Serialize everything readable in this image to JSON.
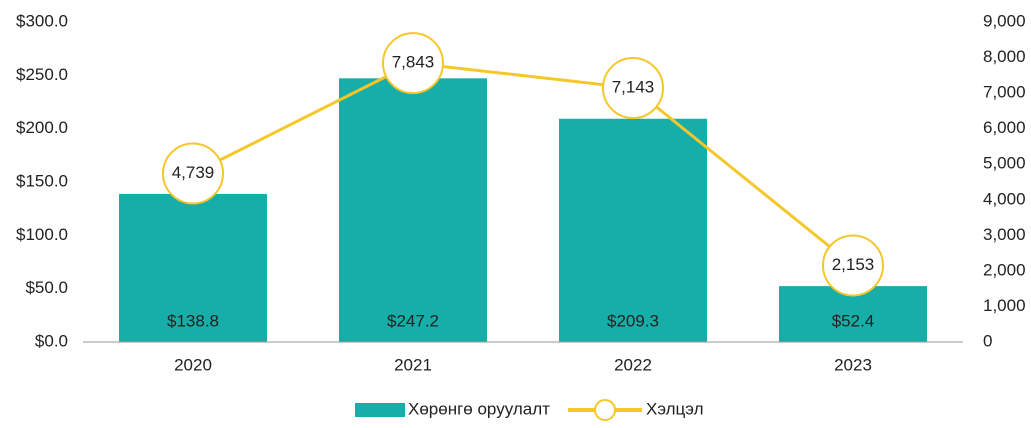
{
  "chart_data": {
    "type": "bar",
    "categories": [
      "2020",
      "2021",
      "2022",
      "2023"
    ],
    "series": [
      {
        "name": "Хөрөнгө оруулалт",
        "type": "bar",
        "color": "#17ada8",
        "values": [
          138.8,
          247.2,
          209.3,
          52.4
        ],
        "value_labels": [
          "$138.8",
          "$247.2",
          "$209.3",
          "$52.4"
        ]
      },
      {
        "name": "Хэлцэл",
        "type": "line",
        "axis": "y2",
        "color": "#f5c72a",
        "values": [
          4739,
          7843,
          7143,
          2153
        ],
        "value_labels": [
          "4,739",
          "7,843",
          "7,143",
          "2,153"
        ]
      }
    ],
    "ylim": [
      0,
      300
    ],
    "yticks": [
      {
        "value": 0,
        "label": "$0.0"
      },
      {
        "value": 50,
        "label": "$50.0"
      },
      {
        "value": 100,
        "label": "$100.0"
      },
      {
        "value": 150,
        "label": "$150.0"
      },
      {
        "value": 200,
        "label": "$200.0"
      },
      {
        "value": 250,
        "label": "$250.0"
      },
      {
        "value": 300,
        "label": "$300.0"
      }
    ],
    "y2lim": [
      0,
      9000
    ],
    "y2ticks": [
      0,
      {
        "value": 1000,
        "label": "1,000"
      },
      {
        "value": 2000,
        "label": "2,000"
      },
      {
        "value": 3000,
        "label": "3,000"
      },
      {
        "value": 4000,
        "label": "4,000"
      },
      {
        "value": 5000,
        "label": "5,000"
      },
      {
        "value": 6000,
        "label": "6,000"
      },
      {
        "value": 7000,
        "label": "7,000"
      },
      {
        "value": 8000,
        "label": "8,000"
      },
      {
        "value": 9000,
        "label": "9,000"
      }
    ],
    "legend": "bottom"
  }
}
